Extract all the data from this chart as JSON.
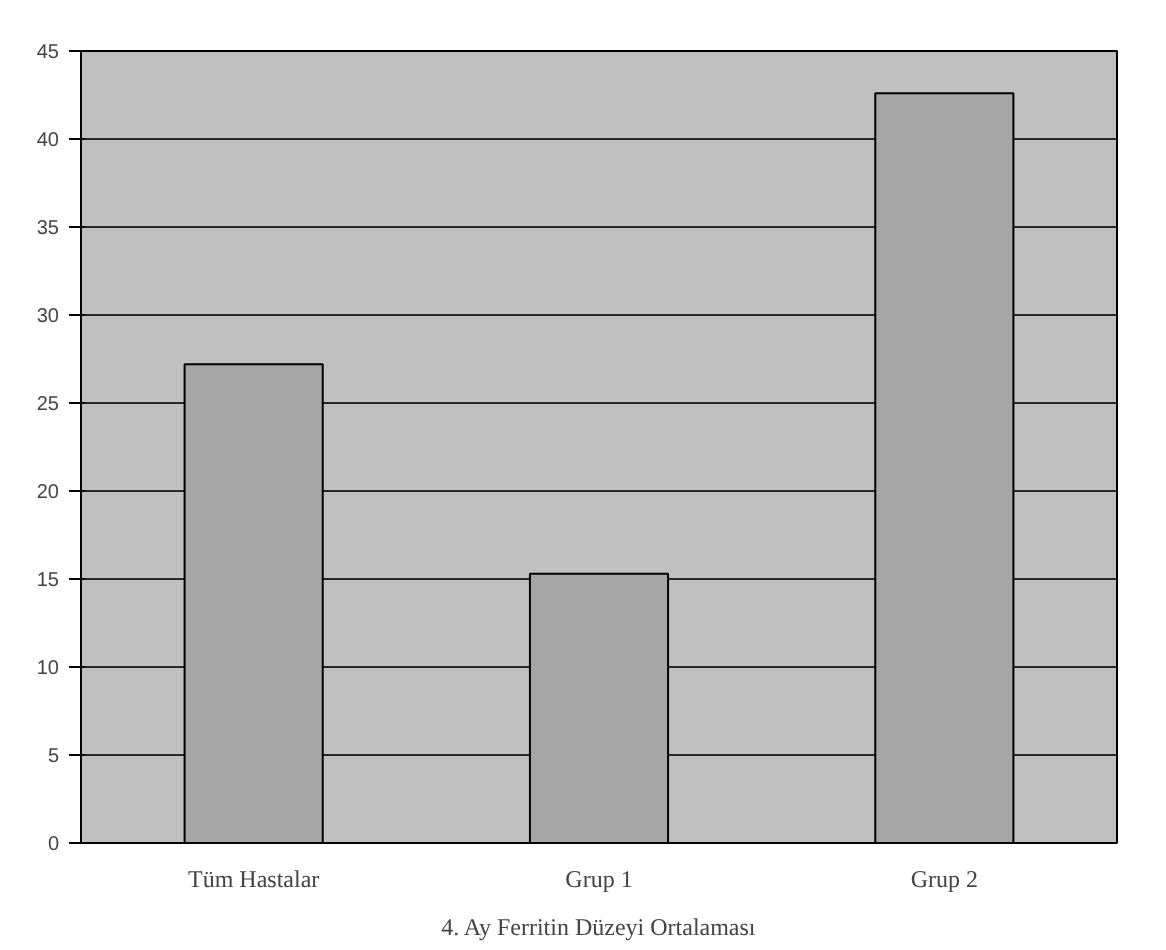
{
  "chart_data": {
    "type": "bar",
    "title": "4. Ay Ferritin Düzeyi Ortalaması",
    "categories": [
      "Tüm Hastalar",
      "Grup 1",
      "Grup 2"
    ],
    "values": [
      27.2,
      15.3,
      42.6
    ],
    "color": "#a6a6a6",
    "ylim": [
      0,
      45
    ],
    "yticks": [
      0,
      5,
      10,
      15,
      20,
      25,
      30,
      35,
      40,
      45
    ],
    "grid": "y"
  }
}
